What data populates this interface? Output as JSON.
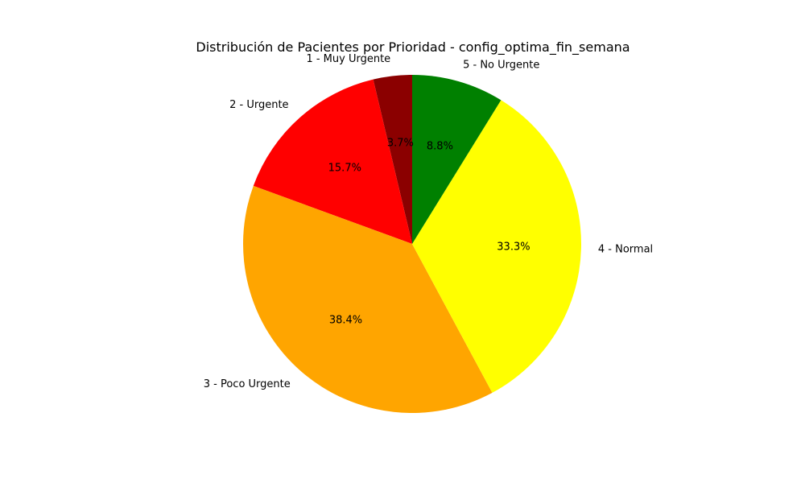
{
  "chart_data": {
    "type": "pie",
    "title": "Distribución de Pacientes por Prioridad - config_optima_fin_semana",
    "start_angle_deg": 90,
    "direction": "counterclockwise",
    "slices": [
      {
        "label": "1 - Muy Urgente",
        "value": 3.7,
        "pct_label": "3.7%",
        "color": "#8b0000"
      },
      {
        "label": "2 - Urgente",
        "value": 15.7,
        "pct_label": "15.7%",
        "color": "#ff0000"
      },
      {
        "label": "3 - Poco Urgente",
        "value": 38.4,
        "pct_label": "38.4%",
        "color": "#ffa500"
      },
      {
        "label": "4 - Normal",
        "value": 33.3,
        "pct_label": "33.3%",
        "color": "#ffff00"
      },
      {
        "label": "5 - No Urgente",
        "value": 8.8,
        "pct_label": "8.8%",
        "color": "#008000"
      }
    ]
  }
}
